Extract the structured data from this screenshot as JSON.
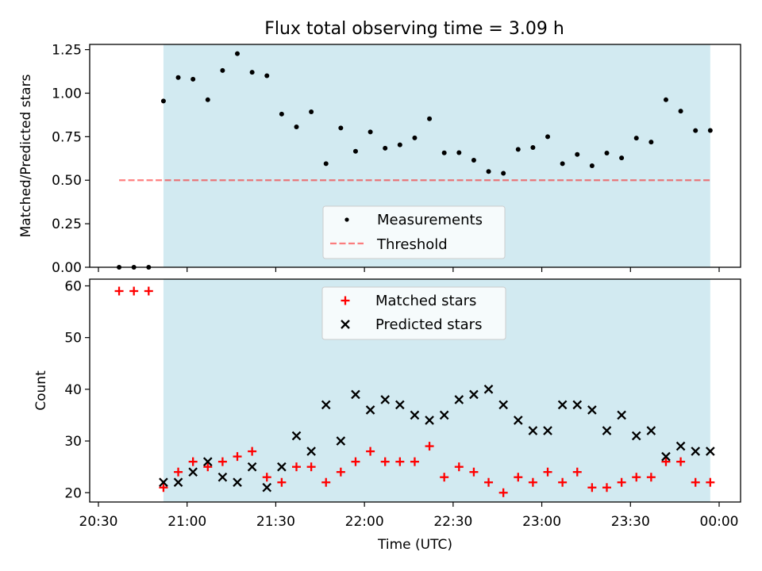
{
  "title": "Flux total observing time = 3.09 h",
  "colors": {
    "shade": "#add8e6",
    "measure": "#000000",
    "threshold": "#ff0000",
    "matched": "#ff0000",
    "predicted": "#000000"
  },
  "chart_data": [
    {
      "type": "scatter",
      "ylabel": "Matched/Predicted stars",
      "ylim": [
        0,
        1.28
      ],
      "yticks": [
        "0.00",
        "0.25",
        "0.50",
        "0.75",
        "1.00",
        "1.25"
      ],
      "grid": false,
      "legend_placement": "lower center",
      "shaded_span": {
        "from": "20:52",
        "to": "23:57"
      },
      "series": [
        {
          "name": "Measurements",
          "marker": "dot",
          "x": [
            "20:37",
            "20:42",
            "20:47",
            "20:52",
            "20:57",
            "21:02",
            "21:07",
            "21:12",
            "21:17",
            "21:22",
            "21:27",
            "21:32",
            "21:37",
            "21:42",
            "21:47",
            "21:52",
            "21:57",
            "22:02",
            "22:07",
            "22:12",
            "22:17",
            "22:22",
            "22:27",
            "22:32",
            "22:37",
            "22:42",
            "22:47",
            "22:52",
            "22:57",
            "23:02",
            "23:07",
            "23:12",
            "23:17",
            "23:22",
            "23:27",
            "23:32",
            "23:37",
            "23:42",
            "23:47",
            "23:52",
            "23:57"
          ],
          "y": [
            0,
            0,
            0,
            0.955,
            1.09,
            1.08,
            0.962,
            1.13,
            1.227,
            1.12,
            1.1,
            0.88,
            0.806,
            0.893,
            0.595,
            0.8,
            0.666,
            0.777,
            0.684,
            0.703,
            0.743,
            0.853,
            0.657,
            0.658,
            0.615,
            0.55,
            0.54,
            0.677,
            0.688,
            0.75,
            0.595,
            0.648,
            0.583,
            0.656,
            0.628,
            0.742,
            0.719,
            0.962,
            0.897,
            0.785,
            0.786
          ]
        },
        {
          "name": "Threshold",
          "style": "dashed",
          "x": [
            "20:37",
            "23:57"
          ],
          "y": [
            0.5,
            0.5
          ]
        }
      ]
    },
    {
      "type": "scatter",
      "xlabel": "Time (UTC)",
      "ylabel": "Count",
      "ylim": [
        18.2,
        61.3
      ],
      "yticks": [
        "20",
        "30",
        "40",
        "50",
        "60"
      ],
      "xticks": [
        "20:30",
        "21:00",
        "21:30",
        "22:00",
        "22:30",
        "23:00",
        "23:30",
        "00:00"
      ],
      "grid": false,
      "legend_placement": "upper center",
      "shaded_span": {
        "from": "20:52",
        "to": "23:57"
      },
      "series": [
        {
          "name": "Matched stars",
          "marker": "plus",
          "x": [
            "20:37",
            "20:42",
            "20:47",
            "20:52",
            "20:57",
            "21:02",
            "21:07",
            "21:12",
            "21:17",
            "21:22",
            "21:27",
            "21:32",
            "21:37",
            "21:42",
            "21:47",
            "21:52",
            "21:57",
            "22:02",
            "22:07",
            "22:12",
            "22:17",
            "22:22",
            "22:27",
            "22:32",
            "22:37",
            "22:42",
            "22:47",
            "22:52",
            "22:57",
            "23:02",
            "23:07",
            "23:12",
            "23:17",
            "23:22",
            "23:27",
            "23:32",
            "23:37",
            "23:42",
            "23:47",
            "23:52",
            "23:57"
          ],
          "y": [
            59,
            59,
            59,
            21,
            24,
            26,
            25,
            26,
            27,
            28,
            23,
            22,
            25,
            25,
            22,
            24,
            26,
            28,
            26,
            26,
            26,
            29,
            23,
            25,
            24,
            22,
            20,
            23,
            22,
            24,
            22,
            24,
            21,
            21,
            22,
            23,
            23,
            26,
            26,
            22,
            22
          ]
        },
        {
          "name": "Predicted stars",
          "marker": "x",
          "x": [
            "20:52",
            "20:57",
            "21:02",
            "21:07",
            "21:12",
            "21:17",
            "21:22",
            "21:27",
            "21:32",
            "21:37",
            "21:42",
            "21:47",
            "21:52",
            "21:57",
            "22:02",
            "22:07",
            "22:12",
            "22:17",
            "22:22",
            "22:27",
            "22:32",
            "22:37",
            "22:42",
            "22:47",
            "22:52",
            "22:57",
            "23:02",
            "23:07",
            "23:12",
            "23:17",
            "23:22",
            "23:27",
            "23:32",
            "23:37",
            "23:42",
            "23:47",
            "23:52",
            "23:57"
          ],
          "y": [
            22,
            22,
            24,
            26,
            23,
            22,
            25,
            21,
            25,
            31,
            28,
            37,
            30,
            39,
            36,
            38,
            37,
            35,
            34,
            35,
            38,
            39,
            40,
            37,
            34,
            32,
            32,
            37,
            37,
            36,
            32,
            35,
            31,
            32,
            27,
            29,
            28,
            28
          ]
        }
      ]
    }
  ]
}
